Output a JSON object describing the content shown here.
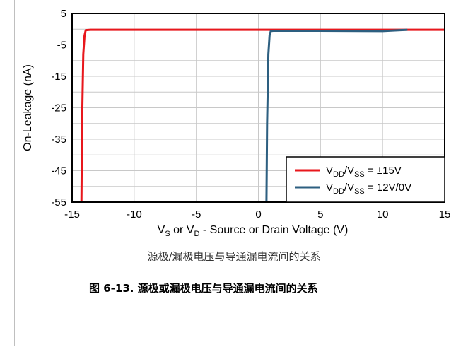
{
  "chart_data": {
    "type": "line",
    "xlabel_parts": [
      "V",
      "S",
      " or V",
      "D",
      " - Source or Drain Voltage (V)"
    ],
    "ylabel": "On-Leakage (nA)",
    "xlim": [
      -15,
      15
    ],
    "ylim": [
      -55,
      5
    ],
    "x_ticks": [
      -15,
      -10,
      -5,
      0,
      5,
      10,
      15
    ],
    "y_ticks": [
      5,
      -5,
      -15,
      -25,
      -35,
      -45,
      -55
    ],
    "grid": true,
    "legend_position": "bottom-right",
    "series": [
      {
        "name_parts": [
          "V",
          "DD",
          "/V",
          "SS",
          "  = ±15V"
        ],
        "color": "#e8171c",
        "x": [
          -14.25,
          -14.2,
          -14.1,
          -14.0,
          -13.9,
          -13.5,
          0,
          15
        ],
        "y": [
          -55,
          -30,
          -8,
          -2,
          -0.3,
          -0.2,
          -0.2,
          -0.2
        ]
      },
      {
        "name_parts": [
          "V",
          "DD",
          "/V",
          "SS",
          "  = 12V/0V"
        ],
        "color": "#2d5f80",
        "x": [
          0.65,
          0.7,
          0.8,
          0.9,
          1.0,
          1.2,
          5,
          10,
          12
        ],
        "y": [
          -55,
          -30,
          -8,
          -2,
          -0.6,
          -0.5,
          -0.5,
          -0.6,
          -0.2
        ]
      }
    ]
  },
  "caption": "源极/漏极电压与导通漏电流间的关系",
  "figure_title": "图 6-13. 源极或漏极电压与导通漏电流间的关系"
}
